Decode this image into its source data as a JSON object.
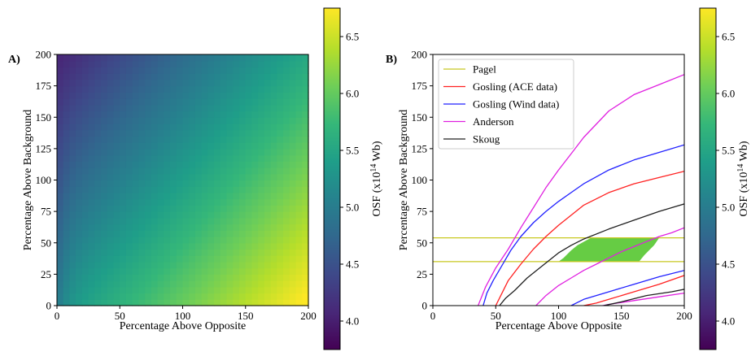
{
  "chart_data": [
    {
      "panel": "A)",
      "type": "heatmap",
      "xlabel": "Percentage Above Opposite",
      "ylabel": "Percentage Above Background",
      "xlim": [
        0,
        200
      ],
      "ylim": [
        0,
        200
      ],
      "xticks": [
        "0",
        "50",
        "100",
        "150",
        "200"
      ],
      "yticks": [
        "0",
        "25",
        "50",
        "75",
        "100",
        "125",
        "150",
        "175",
        "200"
      ],
      "value_model": "OSF rises with Percentage Above Opposite and falls with Percentage Above Background",
      "colorbar": {
        "label": "OSF (x10",
        "label_exp": "14",
        "label_unit": " Wb)",
        "min": 3.75,
        "max": 6.75,
        "ticks": [
          "4.0",
          "4.5",
          "5.0",
          "5.5",
          "6.0",
          "6.5"
        ],
        "colormap": "viridis"
      }
    },
    {
      "panel": "B)",
      "type": "line",
      "xlabel": "Percentage Above Opposite",
      "ylabel": "Percentage Above Background",
      "xlim": [
        0,
        200
      ],
      "ylim": [
        0,
        200
      ],
      "xticks": [
        "0",
        "50",
        "100",
        "150",
        "200"
      ],
      "yticks": [
        "0",
        "25",
        "50",
        "75",
        "100",
        "125",
        "150",
        "175",
        "200"
      ],
      "legend_position": "top-left",
      "series": [
        {
          "name": "Pagel",
          "color": "#c8c820",
          "lines": [
            [
              [
                0,
                54
              ],
              [
                200,
                54
              ]
            ],
            [
              [
                0,
                35
              ],
              [
                200,
                35
              ]
            ]
          ]
        },
        {
          "name": "Gosling (ACE data)",
          "color": "#ff2020",
          "lines": [
            [
              [
                50,
                0
              ],
              [
                55,
                10
              ],
              [
                60,
                20
              ],
              [
                70,
                33
              ],
              [
                80,
                45
              ],
              [
                90,
                55
              ],
              [
                100,
                64
              ],
              [
                110,
                72
              ],
              [
                120,
                80
              ],
              [
                140,
                90
              ],
              [
                160,
                97
              ],
              [
                180,
                102
              ],
              [
                200,
                107
              ]
            ],
            [
              [
                120,
                0
              ],
              [
                130,
                2
              ],
              [
                140,
                5
              ],
              [
                160,
                11
              ],
              [
                180,
                17
              ],
              [
                200,
                24
              ]
            ]
          ]
        },
        {
          "name": "Gosling (Wind data)",
          "color": "#2020ff",
          "lines": [
            [
              [
                40,
                0
              ],
              [
                43,
                10
              ],
              [
                48,
                20
              ],
              [
                55,
                32
              ],
              [
                62,
                44
              ],
              [
                70,
                55
              ],
              [
                80,
                66
              ],
              [
                90,
                75
              ],
              [
                100,
                83
              ],
              [
                110,
                90
              ],
              [
                120,
                97
              ],
              [
                140,
                108
              ],
              [
                160,
                116
              ],
              [
                180,
                122
              ],
              [
                200,
                128
              ]
            ],
            [
              [
                110,
                0
              ],
              [
                120,
                5
              ],
              [
                140,
                11
              ],
              [
                160,
                17
              ],
              [
                180,
                23
              ],
              [
                200,
                28
              ]
            ]
          ]
        },
        {
          "name": "Anderson",
          "color": "#e020e0",
          "lines": [
            [
              [
                36,
                0
              ],
              [
                42,
                15
              ],
              [
                50,
                30
              ],
              [
                60,
                45
              ],
              [
                70,
                62
              ],
              [
                80,
                78
              ],
              [
                90,
                94
              ],
              [
                100,
                108
              ],
              [
                110,
                121
              ],
              [
                120,
                134
              ],
              [
                140,
                155
              ],
              [
                160,
                168
              ],
              [
                180,
                176
              ],
              [
                200,
                184
              ]
            ],
            [
              [
                82,
                0
              ],
              [
                90,
                8
              ],
              [
                100,
                16
              ],
              [
                110,
                22
              ],
              [
                120,
                28
              ],
              [
                130,
                33
              ],
              [
                140,
                38
              ],
              [
                150,
                43
              ],
              [
                160,
                47
              ],
              [
                170,
                51
              ],
              [
                180,
                55
              ],
              [
                190,
                58
              ],
              [
                200,
                62
              ]
            ],
            [
              [
                135,
                0
              ],
              [
                140,
                1
              ],
              [
                160,
                4
              ],
              [
                180,
                7
              ],
              [
                200,
                10
              ]
            ]
          ]
        },
        {
          "name": "Skoug",
          "color": "#202020",
          "lines": [
            [
              [
                53,
                0
              ],
              [
                58,
                6
              ],
              [
                65,
                12
              ],
              [
                75,
                22
              ],
              [
                85,
                30
              ],
              [
                95,
                38
              ],
              [
                100,
                42
              ],
              [
                110,
                48
              ],
              [
                120,
                53
              ],
              [
                140,
                61
              ],
              [
                160,
                68
              ],
              [
                180,
                75
              ],
              [
                200,
                81
              ]
            ],
            [
              [
                136,
                0
              ],
              [
                150,
                3
              ],
              [
                170,
                8
              ],
              [
                190,
                11
              ],
              [
                200,
                13
              ]
            ]
          ]
        }
      ],
      "shaded_region": {
        "color": "#66cc44",
        "y_range": [
          35,
          54
        ],
        "left_bound": [
          [
            100,
            35
          ],
          [
            104,
            38
          ],
          [
            110,
            44
          ],
          [
            115,
            48
          ],
          [
            122,
            52
          ],
          [
            126,
            54
          ]
        ],
        "right_bound": [
          [
            164,
            35
          ],
          [
            168,
            40
          ],
          [
            172,
            44
          ],
          [
            176,
            48
          ],
          [
            180,
            54
          ]
        ]
      },
      "colorbar": {
        "label": "OSF (x10",
        "label_exp": "14",
        "label_unit": " Wb)",
        "min": 3.75,
        "max": 6.75,
        "ticks": [
          "4.0",
          "4.5",
          "5.0",
          "5.5",
          "6.0",
          "6.5"
        ],
        "colormap": "viridis"
      }
    }
  ]
}
